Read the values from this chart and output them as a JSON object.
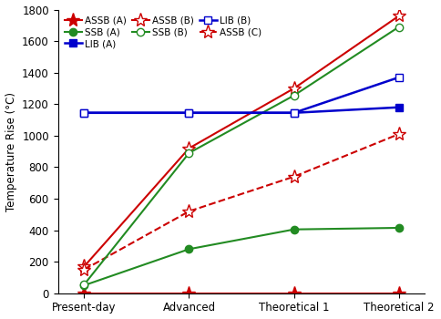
{
  "x_labels": [
    "Present-day",
    "Advanced",
    "Theoretical 1",
    "Theoretical 2"
  ],
  "x_positions": [
    0,
    1,
    2,
    3
  ],
  "series_order": [
    "ASSB_A",
    "ASSB_B",
    "ASSB_C",
    "SSB_A",
    "SSB_B",
    "LIB_A",
    "LIB_B"
  ],
  "series": {
    "ASSB_A": {
      "values": [
        0,
        0,
        0,
        0
      ],
      "color": "#cc0000",
      "linestyle": "-",
      "marker": "*",
      "markersize": 11,
      "markerfacecolor": "#cc0000",
      "markeredgecolor": "#cc0000",
      "label": "ASSB (A)",
      "linewidth": 1.5
    },
    "ASSB_B": {
      "values": [
        170,
        920,
        1300,
        1760
      ],
      "color": "#cc0000",
      "linestyle": "-",
      "marker": "*",
      "markersize": 11,
      "markerfacecolor": "white",
      "markeredgecolor": "#cc0000",
      "label": "ASSB (B)",
      "linewidth": 1.5
    },
    "ASSB_C": {
      "values": [
        150,
        520,
        740,
        1010
      ],
      "color": "#cc0000",
      "linestyle": "--",
      "marker": "*",
      "markersize": 11,
      "markerfacecolor": "white",
      "markeredgecolor": "#cc0000",
      "label": "ASSB (C)",
      "linewidth": 1.5
    },
    "SSB_A": {
      "values": [
        50,
        280,
        405,
        415
      ],
      "color": "#228B22",
      "linestyle": "-",
      "marker": "o",
      "markersize": 6,
      "markerfacecolor": "#228B22",
      "markeredgecolor": "#228B22",
      "label": "SSB (A)",
      "linewidth": 1.5
    },
    "SSB_B": {
      "values": [
        55,
        890,
        1255,
        1690
      ],
      "color": "#228B22",
      "linestyle": "-",
      "marker": "o",
      "markersize": 6,
      "markerfacecolor": "white",
      "markeredgecolor": "#228B22",
      "label": "SSB (B)",
      "linewidth": 1.5
    },
    "LIB_A": {
      "values": [
        1145,
        1145,
        1145,
        1180
      ],
      "color": "#0000cc",
      "linestyle": "-",
      "marker": "s",
      "markersize": 6,
      "markerfacecolor": "#0000cc",
      "markeredgecolor": "#0000cc",
      "label": "LIB (A)",
      "linewidth": 1.8
    },
    "LIB_B": {
      "values": [
        1145,
        1145,
        1145,
        1370
      ],
      "color": "#0000cc",
      "linestyle": "-",
      "marker": "s",
      "markersize": 6,
      "markerfacecolor": "white",
      "markeredgecolor": "#0000cc",
      "label": "LIB (B)",
      "linewidth": 1.8
    }
  },
  "legend": {
    "row1": [
      "ASSB_A",
      "SSB_A",
      "LIB_A"
    ],
    "row2": [
      "ASSB_B",
      "SSB_B",
      "LIB_B"
    ],
    "row3": [
      "ASSB_C"
    ]
  },
  "ylabel": "Temperature Rise (°C)",
  "ylim": [
    0,
    1800
  ],
  "yticks": [
    0,
    200,
    400,
    600,
    800,
    1000,
    1200,
    1400,
    1600,
    1800
  ],
  "figsize": [
    4.84,
    3.5
  ],
  "dpi": 100
}
